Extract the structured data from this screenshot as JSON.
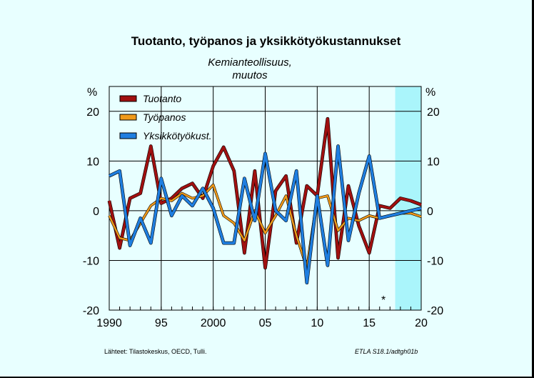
{
  "chart_data": {
    "type": "line",
    "title": "Tuotanto, työpanos ja yksikkötyökustannukset",
    "subtitle": [
      "Kemianteollisuus,",
      "muutos"
    ],
    "ylabel_left": "%",
    "ylabel_right": "%",
    "xlim": [
      1990,
      2020
    ],
    "ylim": [
      -20,
      25
    ],
    "x_tick_labels": [
      "1990",
      "95",
      "2000",
      "05",
      "10",
      "15",
      "20"
    ],
    "x_tick_values": [
      1990,
      1995,
      2000,
      2005,
      2010,
      2015,
      2020
    ],
    "y_tick_values": [
      20,
      10,
      0,
      -10,
      -20
    ],
    "y_tick_labels": [
      "20",
      "10",
      "0",
      "-10",
      "-20"
    ],
    "forecast_start": 2017.5,
    "forecast_marker": "*",
    "forecast_color": "#aaf5fb",
    "grid": true,
    "legend_position": "top-left",
    "series": [
      {
        "name": "Tuotanto",
        "color": "#a01010",
        "x": [
          1990,
          1991,
          1992,
          1993,
          1994,
          1995,
          1996,
          1997,
          1998,
          1999,
          2000,
          2001,
          2002,
          2003,
          2004,
          2005,
          2006,
          2007,
          2008,
          2009,
          2010,
          2011,
          2012,
          2013,
          2014,
          2015,
          2016,
          2017,
          2018,
          2019,
          2020
        ],
        "values": [
          2,
          -7.5,
          2.5,
          3.5,
          13,
          1.5,
          2.5,
          4.5,
          5.5,
          2.5,
          9,
          12.8,
          8,
          -8.5,
          8,
          -11.5,
          4,
          7,
          -6.5,
          5,
          3,
          18.5,
          -9.5,
          5,
          -3,
          -8.5,
          1,
          0.5,
          2.5,
          2,
          1.2
        ]
      },
      {
        "name": "Työpanos",
        "color": "#f09a1a",
        "x": [
          1990,
          1991,
          1992,
          1993,
          1994,
          1995,
          1996,
          1997,
          1998,
          1999,
          2000,
          2001,
          2002,
          2003,
          2004,
          2005,
          2006,
          2007,
          2008,
          2009,
          2010,
          2011,
          2012,
          2013,
          2014,
          2015,
          2016,
          2017,
          2018,
          2019,
          2020
        ],
        "values": [
          -1,
          -5.5,
          -6,
          -2.5,
          1,
          2.5,
          2,
          3.5,
          2.5,
          3,
          5.2,
          -1,
          -2.5,
          -6,
          0,
          -4.5,
          -1,
          3,
          -5,
          -11.5,
          2.5,
          3,
          -4,
          -1.5,
          -2,
          -1,
          -1.5,
          -1,
          -0.5,
          -0.5,
          -1.2
        ]
      },
      {
        "name": "Yksikkötyökust.",
        "color": "#1e7ee0",
        "x": [
          1990,
          1991,
          1992,
          1993,
          1994,
          1995,
          1996,
          1997,
          1998,
          1999,
          2000,
          2001,
          2002,
          2003,
          2004,
          2005,
          2006,
          2007,
          2008,
          2009,
          2010,
          2011,
          2012,
          2013,
          2014,
          2015,
          2016,
          2017,
          2018,
          2019,
          2020
        ],
        "values": [
          7,
          8,
          -7,
          -1.5,
          -6.5,
          6.5,
          -1,
          3,
          1,
          4.5,
          0.5,
          -6.5,
          -6.5,
          6.5,
          -2,
          11.5,
          0,
          -2,
          8,
          -14.5,
          3,
          -11,
          13,
          -6,
          3.5,
          11,
          -1.5,
          -1,
          -0.5,
          0,
          0.5
        ]
      }
    ]
  },
  "sources": "Lähteet:   Tilastokeskus, OECD, Tulli.",
  "code": "ETLA S18.1/adtgh01b"
}
